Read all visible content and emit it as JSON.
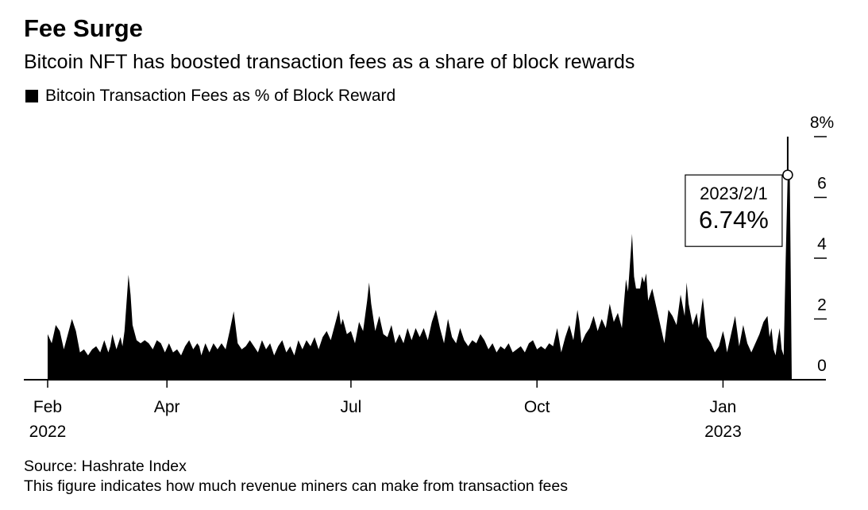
{
  "chart_data": {
    "type": "area",
    "title": "Fee Surge",
    "subtitle": "Bitcoin NFT has boosted transaction fees as a share of block rewards",
    "legend": "Bitcoin Transaction Fees as % of Block Reward",
    "series_color": "#000000",
    "ylim": [
      0,
      8
    ],
    "y_ticks": [
      {
        "value": 0,
        "label": "0"
      },
      {
        "value": 2,
        "label": "2"
      },
      {
        "value": 4,
        "label": "4"
      },
      {
        "value": 6,
        "label": "6"
      },
      {
        "value": 8,
        "label": "8%"
      }
    ],
    "x_ticks": [
      {
        "day": 0,
        "label": "Feb",
        "sublabel": "2022"
      },
      {
        "day": 59,
        "label": "Apr",
        "sublabel": ""
      },
      {
        "day": 150,
        "label": "Jul",
        "sublabel": ""
      },
      {
        "day": 242,
        "label": "Oct",
        "sublabel": ""
      },
      {
        "day": 334,
        "label": "Jan",
        "sublabel": "2023"
      }
    ],
    "x_range_days": [
      0,
      368
    ],
    "start_date": "2022-02-01",
    "series": [
      {
        "name": "Bitcoin Transaction Fees as % of Block Reward",
        "points": [
          [
            0,
            1.5
          ],
          [
            2,
            1.2
          ],
          [
            4,
            1.8
          ],
          [
            6,
            1.6
          ],
          [
            8,
            1.0
          ],
          [
            10,
            1.5
          ],
          [
            12,
            2.0
          ],
          [
            14,
            1.6
          ],
          [
            16,
            0.9
          ],
          [
            18,
            1.0
          ],
          [
            20,
            0.8
          ],
          [
            22,
            1.0
          ],
          [
            24,
            1.1
          ],
          [
            26,
            0.9
          ],
          [
            28,
            1.3
          ],
          [
            30,
            0.9
          ],
          [
            31,
            1.1
          ],
          [
            32,
            1.5
          ],
          [
            34,
            1.0
          ],
          [
            36,
            1.4
          ],
          [
            37,
            1.1
          ],
          [
            38,
            1.6
          ],
          [
            40,
            3.45
          ],
          [
            41,
            2.8
          ],
          [
            42,
            1.8
          ],
          [
            44,
            1.3
          ],
          [
            46,
            1.2
          ],
          [
            48,
            1.3
          ],
          [
            50,
            1.2
          ],
          [
            52,
            1.0
          ],
          [
            54,
            1.3
          ],
          [
            56,
            1.2
          ],
          [
            58,
            0.9
          ],
          [
            60,
            1.2
          ],
          [
            62,
            0.9
          ],
          [
            64,
            1.0
          ],
          [
            66,
            0.8
          ],
          [
            68,
            1.1
          ],
          [
            70,
            1.3
          ],
          [
            72,
            1.0
          ],
          [
            74,
            1.2
          ],
          [
            75,
            1.1
          ],
          [
            76,
            0.8
          ],
          [
            78,
            1.2
          ],
          [
            80,
            0.9
          ],
          [
            82,
            1.2
          ],
          [
            84,
            1.0
          ],
          [
            86,
            1.2
          ],
          [
            88,
            1.0
          ],
          [
            90,
            1.6
          ],
          [
            92,
            2.25
          ],
          [
            94,
            1.2
          ],
          [
            96,
            1.0
          ],
          [
            98,
            1.1
          ],
          [
            100,
            1.3
          ],
          [
            102,
            1.1
          ],
          [
            104,
            0.9
          ],
          [
            106,
            1.3
          ],
          [
            108,
            1.0
          ],
          [
            110,
            1.2
          ],
          [
            112,
            0.8
          ],
          [
            114,
            1.1
          ],
          [
            116,
            1.3
          ],
          [
            118,
            0.9
          ],
          [
            120,
            1.1
          ],
          [
            122,
            0.8
          ],
          [
            124,
            1.3
          ],
          [
            126,
            1.0
          ],
          [
            128,
            1.3
          ],
          [
            130,
            1.1
          ],
          [
            132,
            1.4
          ],
          [
            134,
            1.0
          ],
          [
            136,
            1.4
          ],
          [
            138,
            1.6
          ],
          [
            140,
            1.3
          ],
          [
            142,
            1.8
          ],
          [
            144,
            2.3
          ],
          [
            145,
            1.8
          ],
          [
            146,
            2.0
          ],
          [
            148,
            1.5
          ],
          [
            150,
            1.6
          ],
          [
            152,
            1.2
          ],
          [
            154,
            1.9
          ],
          [
            156,
            1.6
          ],
          [
            158,
            2.6
          ],
          [
            159,
            3.2
          ],
          [
            160,
            2.5
          ],
          [
            162,
            1.6
          ],
          [
            164,
            2.1
          ],
          [
            166,
            1.5
          ],
          [
            168,
            1.4
          ],
          [
            170,
            1.8
          ],
          [
            172,
            1.2
          ],
          [
            174,
            1.5
          ],
          [
            176,
            1.2
          ],
          [
            178,
            1.7
          ],
          [
            180,
            1.3
          ],
          [
            182,
            1.7
          ],
          [
            184,
            1.4
          ],
          [
            186,
            1.7
          ],
          [
            188,
            1.3
          ],
          [
            190,
            1.9
          ],
          [
            192,
            2.3
          ],
          [
            194,
            1.7
          ],
          [
            196,
            1.2
          ],
          [
            198,
            2.0
          ],
          [
            200,
            1.4
          ],
          [
            202,
            1.2
          ],
          [
            204,
            1.7
          ],
          [
            206,
            1.3
          ],
          [
            208,
            1.1
          ],
          [
            210,
            1.3
          ],
          [
            212,
            1.2
          ],
          [
            214,
            1.5
          ],
          [
            216,
            1.3
          ],
          [
            218,
            1.0
          ],
          [
            220,
            1.2
          ],
          [
            222,
            0.9
          ],
          [
            224,
            1.1
          ],
          [
            226,
            1.0
          ],
          [
            228,
            1.2
          ],
          [
            230,
            0.9
          ],
          [
            232,
            1.0
          ],
          [
            234,
            1.1
          ],
          [
            236,
            0.9
          ],
          [
            238,
            1.2
          ],
          [
            240,
            1.3
          ],
          [
            242,
            1.0
          ],
          [
            244,
            1.1
          ],
          [
            246,
            1.0
          ],
          [
            248,
            1.2
          ],
          [
            250,
            1.1
          ],
          [
            252,
            1.7
          ],
          [
            253,
            1.3
          ],
          [
            254,
            0.9
          ],
          [
            256,
            1.4
          ],
          [
            258,
            1.8
          ],
          [
            260,
            1.3
          ],
          [
            262,
            2.3
          ],
          [
            263,
            1.9
          ],
          [
            264,
            1.2
          ],
          [
            266,
            1.5
          ],
          [
            268,
            1.7
          ],
          [
            270,
            2.1
          ],
          [
            272,
            1.6
          ],
          [
            274,
            2.0
          ],
          [
            276,
            1.7
          ],
          [
            278,
            2.5
          ],
          [
            280,
            1.9
          ],
          [
            282,
            2.2
          ],
          [
            284,
            1.7
          ],
          [
            286,
            3.3
          ],
          [
            287,
            2.9
          ],
          [
            289,
            4.8
          ],
          [
            290,
            3.4
          ],
          [
            291,
            3.0
          ],
          [
            293,
            3.0
          ],
          [
            294,
            3.4
          ],
          [
            295,
            3.2
          ],
          [
            296,
            3.5
          ],
          [
            297,
            2.6
          ],
          [
            299,
            3.0
          ],
          [
            301,
            2.4
          ],
          [
            303,
            1.8
          ],
          [
            305,
            1.2
          ],
          [
            307,
            2.3
          ],
          [
            309,
            2.1
          ],
          [
            311,
            1.8
          ],
          [
            313,
            2.8
          ],
          [
            315,
            2.1
          ],
          [
            316,
            3.2
          ],
          [
            317,
            2.5
          ],
          [
            319,
            1.8
          ],
          [
            321,
            2.2
          ],
          [
            322,
            1.7
          ],
          [
            324,
            2.7
          ],
          [
            326,
            1.4
          ],
          [
            328,
            1.2
          ],
          [
            330,
            0.9
          ],
          [
            332,
            1.1
          ],
          [
            334,
            1.6
          ],
          [
            335,
            1.3
          ],
          [
            336,
            0.9
          ],
          [
            338,
            1.5
          ],
          [
            340,
            2.1
          ],
          [
            342,
            1.1
          ],
          [
            344,
            1.8
          ],
          [
            346,
            1.2
          ],
          [
            348,
            0.9
          ],
          [
            350,
            1.2
          ],
          [
            352,
            1.5
          ],
          [
            354,
            1.9
          ],
          [
            356,
            2.1
          ],
          [
            357,
            1.4
          ],
          [
            358,
            1.7
          ],
          [
            359,
            1.0
          ],
          [
            360,
            0.8
          ],
          [
            361,
            1.3
          ],
          [
            362,
            1.7
          ],
          [
            363,
            1.0
          ],
          [
            364,
            0.8
          ],
          [
            365,
            4.0
          ],
          [
            366,
            6.74
          ],
          [
            367,
            6.74
          ],
          [
            368,
            0.0
          ]
        ]
      }
    ],
    "spike_line_to": 8,
    "annotation": {
      "day": 366,
      "value": 6.74,
      "date_label": "2023/2/1",
      "value_label": "6.74%"
    }
  },
  "source": "Source: Hashrate Index",
  "note": "This figure indicates how much revenue miners can make from transaction fees"
}
